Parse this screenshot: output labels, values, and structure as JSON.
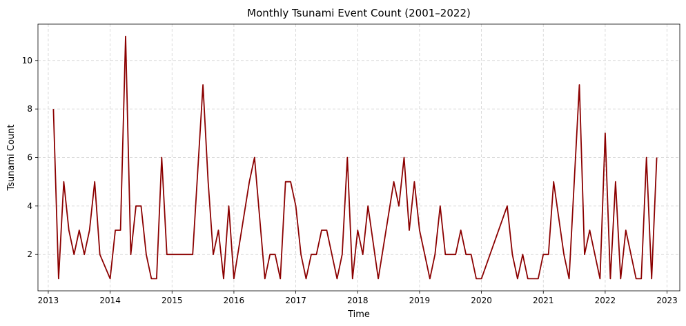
{
  "chart_data": {
    "type": "line",
    "title": "Monthly Tsunami Event Count (2001–2022)",
    "xlabel": "Time",
    "ylabel": "Tsunami Count",
    "x_axis_type": "date",
    "xlim": [
      "2012-11-01",
      "2023-03-15"
    ],
    "ylim": [
      0.5,
      11.5
    ],
    "x_ticks": [
      "2013",
      "2014",
      "2015",
      "2016",
      "2017",
      "2018",
      "2019",
      "2020",
      "2021",
      "2022",
      "2023"
    ],
    "y_ticks": [
      2,
      4,
      6,
      8,
      10
    ],
    "grid": true,
    "color": "#8b0000",
    "series": [
      {
        "x": [
          "2013-02",
          "2013-03",
          "2013-04",
          "2013-05",
          "2013-06",
          "2013-07",
          "2013-08",
          "2013-09",
          "2013-10",
          "2013-11",
          "2014-01",
          "2014-02",
          "2014-03",
          "2014-04",
          "2014-05",
          "2014-06",
          "2014-07",
          "2014-08",
          "2014-09",
          "2014-10",
          "2014-11",
          "2014-12",
          "2015-05",
          "2015-07",
          "2015-08",
          "2015-09",
          "2015-10",
          "2015-11",
          "2015-12",
          "2016-01",
          "2016-04",
          "2016-05",
          "2016-07",
          "2016-08",
          "2016-09",
          "2016-10",
          "2016-11",
          "2016-12",
          "2017-01",
          "2017-02",
          "2017-03",
          "2017-04",
          "2017-05",
          "2017-06",
          "2017-07",
          "2017-09",
          "2017-10",
          "2017-11",
          "2017-12",
          "2018-01",
          "2018-02",
          "2018-03",
          "2018-05",
          "2018-08",
          "2018-09",
          "2018-10",
          "2018-11",
          "2018-12",
          "2019-01",
          "2019-03",
          "2019-04",
          "2019-05",
          "2019-06",
          "2019-07",
          "2019-08",
          "2019-09",
          "2019-10",
          "2019-11",
          "2019-12",
          "2020-01",
          "2020-06",
          "2020-07",
          "2020-08",
          "2020-09",
          "2020-10",
          "2020-12",
          "2021-01",
          "2021-02",
          "2021-03",
          "2021-05",
          "2021-06",
          "2021-08",
          "2021-09",
          "2021-10",
          "2021-12",
          "2022-01",
          "2022-02",
          "2022-03",
          "2022-04",
          "2022-05",
          "2022-07",
          "2022-08",
          "2022-09",
          "2022-10",
          "2022-11"
        ],
        "values": [
          8,
          1,
          5,
          3,
          2,
          3,
          2,
          3,
          5,
          2,
          1,
          3,
          3,
          11,
          2,
          4,
          4,
          2,
          1,
          1,
          6,
          2,
          2,
          9,
          5,
          2,
          3,
          1,
          4,
          1,
          5,
          6,
          1,
          2,
          2,
          1,
          5,
          5,
          4,
          2,
          1,
          2,
          2,
          3,
          3,
          1,
          2,
          6,
          1,
          3,
          2,
          4,
          1,
          5,
          4,
          6,
          3,
          5,
          3,
          1,
          2,
          4,
          2,
          2,
          2,
          3,
          2,
          2,
          1,
          1,
          4,
          2,
          1,
          2,
          1,
          1,
          2,
          2,
          5,
          2,
          1,
          9,
          2,
          3,
          1,
          7,
          1,
          5,
          1,
          3,
          1,
          1,
          6,
          1,
          6
        ]
      }
    ]
  }
}
